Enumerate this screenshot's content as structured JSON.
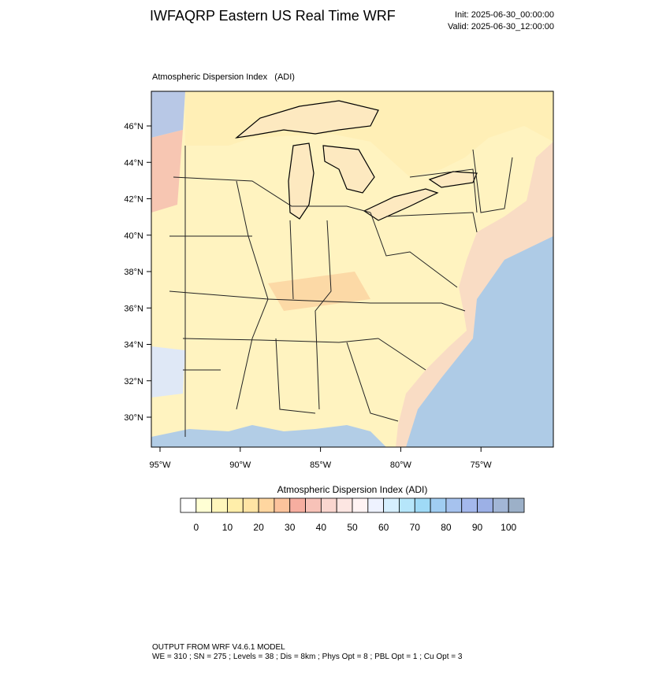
{
  "header": {
    "title": "IWFAQRP Eastern US Real Time WRF",
    "init": "Init: 2025-06-30_00:00:00",
    "valid": "Valid: 2025-06-30_12:00:00"
  },
  "map": {
    "title": "Atmospheric Dispersion Index   (ADI)",
    "lat_labels": [
      "46°N",
      "44°N",
      "42°N",
      "40°N",
      "38°N",
      "36°N",
      "34°N",
      "32°N",
      "30°N"
    ],
    "lon_labels": [
      "95°W",
      "90°W",
      "85°W",
      "80°W",
      "75°W"
    ]
  },
  "colorbar": {
    "title": "Atmospheric Dispersion Index (ADI)",
    "labels": [
      "0",
      "10",
      "20",
      "30",
      "40",
      "50",
      "60",
      "70",
      "80",
      "90",
      "100"
    ],
    "colors": [
      "#ffffff",
      "#ffffd4",
      "#fff6bc",
      "#ffeeaa",
      "#ffe4a4",
      "#ffd6a0",
      "#fcc39c",
      "#f6aea0",
      "#f7c2b8",
      "#fad6cf",
      "#fde6e2",
      "#fff3f3",
      "#eef2ff",
      "#d6efff",
      "#b6e6fa",
      "#9fdaf6",
      "#a0cdf2",
      "#a6c2ee",
      "#a4b8ec",
      "#9cb0e6",
      "#a2b6d6",
      "#9cb0c8"
    ]
  },
  "footer": {
    "line1": "OUTPUT FROM WRF V4.6.1 MODEL",
    "line2": "WE = 310 ; SN = 275 ; Levels = 38 ; Dis = 8km ; Phys Opt = 8 ; PBL Opt = 1 ; Cu Opt = 3"
  }
}
